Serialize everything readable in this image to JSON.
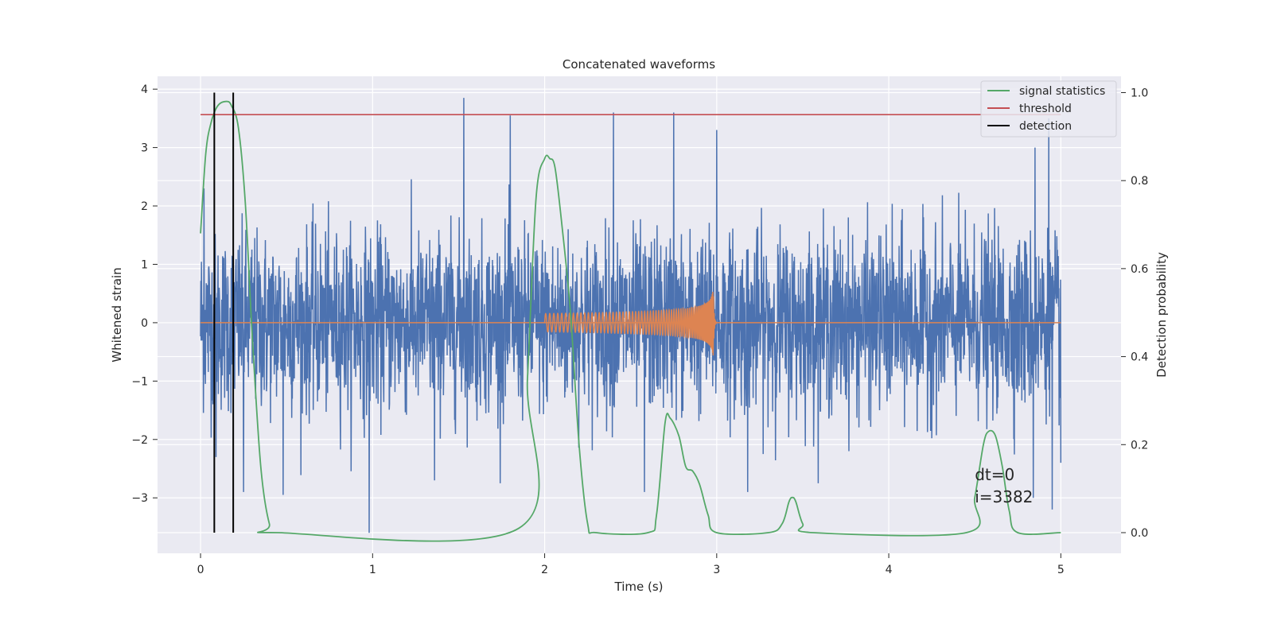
{
  "chart_data": {
    "type": "line",
    "title": "Concatenated waveforms",
    "xlabel": "Time (s)",
    "ylabel": "Whitened strain",
    "y2label": "Detection probability",
    "xlim": [
      -0.25,
      5.35
    ],
    "ylim": [
      -3.95,
      4.22
    ],
    "y2lim": [
      -0.047,
      1.037
    ],
    "xticks": [
      0,
      1,
      2,
      3,
      4,
      5
    ],
    "yticks": [
      -3,
      -2,
      -1,
      0,
      1,
      2,
      3,
      4
    ],
    "y2ticks": [
      0.0,
      0.2,
      0.4,
      0.6,
      0.8,
      1.0
    ],
    "grid": true,
    "legend_position": "top-right",
    "colors": {
      "background": "#eaeaf2",
      "noise": "#4c72b0",
      "injection": "#dd8452",
      "signal_statistics": "#55a868",
      "threshold": "#c44e52",
      "detection": "#000000"
    },
    "series": [
      {
        "name": "",
        "kind": "noise",
        "axis": "left",
        "x_range": [
          0,
          5
        ],
        "std": 0.75,
        "spikes": [
          [
            1.53,
            3.85
          ],
          [
            1.8,
            3.55
          ],
          [
            2.4,
            3.6
          ],
          [
            2.75,
            3.6
          ],
          [
            3.0,
            3.3
          ],
          [
            4.85,
            3.0
          ],
          [
            4.93,
            3.5
          ],
          [
            0.02,
            2.3
          ],
          [
            0.98,
            -3.6
          ],
          [
            0.09,
            -2.3
          ],
          [
            0.25,
            -2.9
          ],
          [
            0.48,
            -2.95
          ],
          [
            1.36,
            -2.7
          ],
          [
            2.58,
            -2.9
          ],
          [
            3.18,
            -2.9
          ],
          [
            4.84,
            -3.0
          ],
          [
            5.0,
            -2.4
          ],
          [
            4.95,
            -3.2
          ]
        ]
      },
      {
        "name": "",
        "kind": "chirp",
        "axis": "left",
        "x_range": [
          2.0,
          3.0
        ],
        "merger_time": 2.98,
        "peak_amplitude": 0.62
      },
      {
        "name": "signal statistics",
        "axis": "right",
        "x": [
          0,
          0.03,
          0.06,
          0.1,
          0.15,
          0.18,
          0.22,
          0.26,
          0.3,
          0.35,
          0.4,
          0.45,
          1.85,
          1.9,
          1.95,
          2.0,
          2.03,
          2.06,
          2.1,
          2.15,
          2.2,
          2.25,
          2.3,
          2.6,
          2.65,
          2.7,
          2.73,
          2.78,
          2.82,
          2.86,
          2.9,
          2.95,
          3.0,
          3.3,
          3.38,
          3.42,
          3.44,
          3.46,
          3.5,
          3.56,
          4.45,
          4.5,
          4.55,
          4.58,
          4.62,
          4.66,
          4.7,
          4.75,
          5.0
        ],
        "y": [
          0.68,
          0.86,
          0.93,
          0.97,
          0.98,
          0.97,
          0.92,
          0.75,
          0.45,
          0.15,
          0.02,
          0.0,
          0.01,
          0.35,
          0.76,
          0.85,
          0.85,
          0.83,
          0.7,
          0.5,
          0.2,
          0.02,
          0.0,
          0.0,
          0.04,
          0.25,
          0.26,
          0.22,
          0.15,
          0.14,
          0.11,
          0.04,
          0.0,
          0.0,
          0.02,
          0.07,
          0.08,
          0.07,
          0.02,
          0.0,
          0.0,
          0.08,
          0.2,
          0.23,
          0.22,
          0.15,
          0.05,
          0.0,
          0.0
        ]
      },
      {
        "name": "threshold",
        "axis": "right",
        "x": [
          0,
          5
        ],
        "y": [
          0.95,
          0.95
        ]
      },
      {
        "name": "detection",
        "axis": "right",
        "kind": "vlines",
        "x": [
          0.08,
          0.19
        ],
        "y_range": [
          0.0,
          1.0
        ]
      }
    ],
    "annotations": [
      {
        "text": "dt=0",
        "x": 4.5,
        "y": -2.7
      },
      {
        "text": "i=3382",
        "x": 4.5,
        "y": -3.08
      }
    ]
  }
}
